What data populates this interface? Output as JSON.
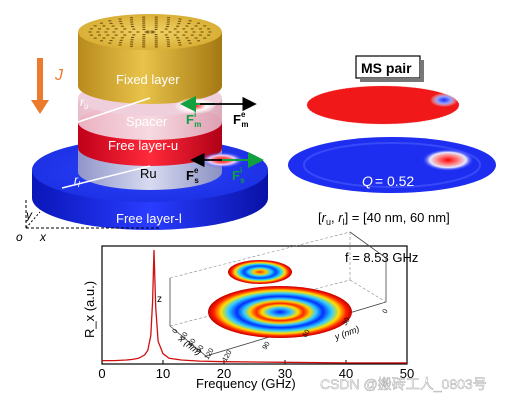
{
  "stack": {
    "current_label": "J",
    "layers": {
      "fixed": "Fixed layer",
      "spacer": "Spacer",
      "free_u": "Free layer-u",
      "ru_label": "Ru",
      "free_l": "Free layer-l"
    },
    "radius_u": "r",
    "radius_u_sub": "u",
    "radius_l": "r",
    "radius_l_sub": "l",
    "force_m_i": "F",
    "force_m_i_sup": "i",
    "force_m_i_sub": "m",
    "force_m_e": "F",
    "force_m_e_sup": "e",
    "force_m_e_sub": "m",
    "force_s_e": "F",
    "force_s_e_sup": "e",
    "force_s_e_sub": "s",
    "force_s_i": "F",
    "force_s_i_sup": "i",
    "force_s_i_sub": "s",
    "axes": {
      "y": "y",
      "o": "o",
      "x": "x"
    }
  },
  "ms_panel": {
    "title": "MS pair",
    "q_label": "Q",
    "q_value": "= 0.52",
    "radii_text_open": "[",
    "radii_ru": "r",
    "radii_ru_sub": "u",
    "radii_sep": ", ",
    "radii_rl": "r",
    "radii_rl_sub": "l",
    "radii_values": "] = [40 nm, 60 nm]"
  },
  "chart_data": {
    "type": "line",
    "xlabel": "Frequency (GHz)",
    "ylabel": "R_x (a.u.)",
    "xlim": [
      0,
      50
    ],
    "x_ticks": [
      0,
      10,
      20,
      30,
      40,
      50
    ],
    "annotation": "f = 8.53 GHz",
    "series": [
      {
        "x": [
          0,
          2,
          4,
          5,
          6,
          7,
          7.5,
          8,
          8.3,
          8.53,
          8.8,
          9.2,
          10,
          11,
          13,
          16,
          20,
          30,
          40,
          50
        ],
        "y": [
          0.03,
          0.03,
          0.035,
          0.04,
          0.05,
          0.08,
          0.12,
          0.25,
          0.55,
          1.0,
          0.5,
          0.2,
          0.09,
          0.05,
          0.035,
          0.025,
          0.02,
          0.015,
          0.01,
          0.01
        ]
      }
    ],
    "inset": {
      "z_label": "z",
      "x_label": "x (nm)",
      "y_label": "y (nm)",
      "x_ticks": [
        "0",
        "30",
        "60",
        "90",
        "120"
      ],
      "y_ticks": [
        "120",
        "90",
        "60",
        "30",
        "0"
      ]
    }
  },
  "watermark": "CSDN @搬砖工人_0803号"
}
